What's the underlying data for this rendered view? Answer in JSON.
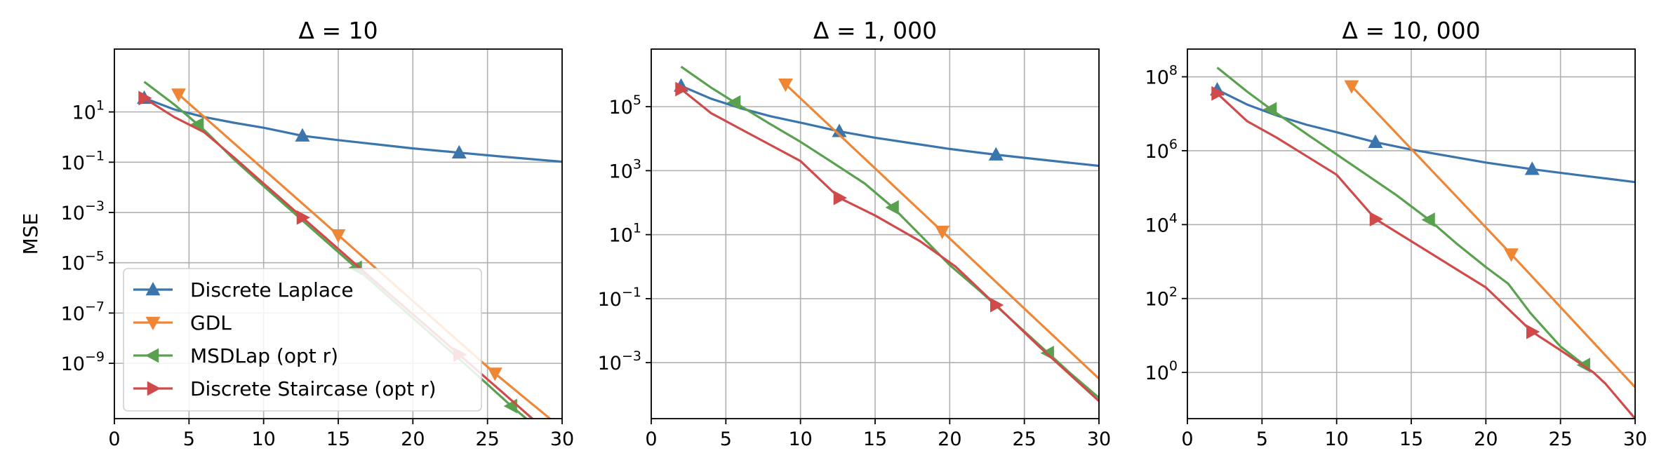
{
  "chart_data": [
    {
      "type": "line",
      "title": "Δ = 10",
      "ylabel": "MSE",
      "xlabel": "",
      "xlim": [
        0,
        30
      ],
      "ylim_log10": [
        -11.2,
        3.5
      ],
      "yscale": "log",
      "grid": true,
      "legend_placement": "lower-left",
      "xticks": [
        "0",
        "5",
        "10",
        "15",
        "20",
        "25",
        "30"
      ],
      "yticks": [
        {
          "base": "10",
          "exp": "1",
          "log10": 1
        },
        {
          "base": "10",
          "exp": "−1",
          "log10": -1
        },
        {
          "base": "10",
          "exp": "−3",
          "log10": -3
        },
        {
          "base": "10",
          "exp": "−5",
          "log10": -5
        },
        {
          "base": "10",
          "exp": "−7",
          "log10": -7
        },
        {
          "base": "10",
          "exp": "−9",
          "log10": -9
        }
      ],
      "series": [
        {
          "name": "Discrete Laplace",
          "color": "#3a75ae",
          "marker": "triangle-up",
          "x": [
            2,
            4,
            6,
            8,
            10,
            12.6,
            15,
            18,
            20,
            23.1,
            26,
            28,
            30
          ],
          "log10_y": [
            1.55,
            1.1,
            0.8,
            0.57,
            0.37,
            0.05,
            -0.12,
            -0.32,
            -0.45,
            -0.62,
            -0.78,
            -0.88,
            -0.98
          ],
          "markers_x": [
            2,
            12.6,
            23.1
          ]
        },
        {
          "name": "GDL",
          "color": "#ef8636",
          "marker": "triangle-down",
          "x": [
            4.3,
            15,
            25.5,
            30
          ],
          "log10_y": [
            1.7,
            -3.9,
            -9.4,
            -11.6
          ],
          "markers_x": [
            4.3,
            15,
            25.5
          ]
        },
        {
          "name": "MSDLap (opt r)",
          "color": "#59a14f",
          "marker": "triangle-left",
          "x": [
            2,
            4,
            5.6,
            6.3,
            8,
            10,
            12,
            14,
            16.2,
            18,
            20,
            22,
            24,
            26.6,
            28,
            30
          ],
          "log10_y": [
            2.2,
            1.3,
            0.5,
            0.12,
            -0.88,
            -1.95,
            -3.0,
            -4.05,
            -5.2,
            -6.15,
            -7.2,
            -8.25,
            -9.3,
            -10.7,
            -11.4,
            -12.4
          ],
          "markers_x": [
            5.6,
            16.2,
            26.6
          ]
        },
        {
          "name": "Discrete Staircase (opt r)",
          "color": "#d04a4a",
          "marker": "triangle-right",
          "x": [
            2,
            4,
            6,
            8,
            10,
            12.6,
            15,
            17,
            20,
            23,
            26,
            28,
            30
          ],
          "log10_y": [
            1.55,
            0.8,
            0.2,
            -0.8,
            -1.85,
            -3.2,
            -4.45,
            -5.5,
            -7.05,
            -8.6,
            -10.15,
            -11.2,
            -12.2
          ],
          "markers_x": [
            2,
            12.6,
            23.1
          ]
        }
      ]
    },
    {
      "type": "line",
      "title": "Δ = 1, 000",
      "ylabel": "",
      "xlabel": "",
      "xlim": [
        0,
        30
      ],
      "ylim_log10": [
        -4.75,
        6.8
      ],
      "yscale": "log",
      "grid": true,
      "xticks": [
        "0",
        "5",
        "10",
        "15",
        "20",
        "25",
        "30"
      ],
      "yticks": [
        {
          "base": "10",
          "exp": "5",
          "log10": 5
        },
        {
          "base": "10",
          "exp": "3",
          "log10": 3
        },
        {
          "base": "10",
          "exp": "1",
          "log10": 1
        },
        {
          "base": "10",
          "exp": "−1",
          "log10": -1
        },
        {
          "base": "10",
          "exp": "−3",
          "log10": -3
        }
      ],
      "series": [
        {
          "name": "Discrete Laplace",
          "color": "#3a75ae",
          "marker": "triangle-up",
          "x": [
            2,
            4,
            6,
            8,
            10,
            12.6,
            15,
            18,
            20,
            23.1,
            26,
            28,
            30
          ],
          "log10_y": [
            5.65,
            5.25,
            4.95,
            4.7,
            4.5,
            4.23,
            4.03,
            3.82,
            3.68,
            3.5,
            3.35,
            3.25,
            3.15
          ],
          "markers_x": [
            2,
            12.6,
            23.1
          ]
        },
        {
          "name": "GDL",
          "color": "#ef8636",
          "marker": "triangle-down",
          "x": [
            9,
            19.5,
            30
          ],
          "log10_y": [
            5.7,
            1.1,
            -3.5
          ],
          "markers_x": [
            9,
            19.5
          ]
        },
        {
          "name": "MSDLap (opt r)",
          "color": "#59a14f",
          "marker": "triangle-left",
          "x": [
            2,
            4,
            5.6,
            8,
            10,
            12,
            14.3,
            16.2,
            18,
            20,
            22,
            24,
            26.6,
            28,
            30
          ],
          "log10_y": [
            6.25,
            5.6,
            5.13,
            4.45,
            3.9,
            3.3,
            2.6,
            1.85,
            1.0,
            0.05,
            -0.75,
            -1.6,
            -2.7,
            -3.3,
            -4.1
          ],
          "markers_x": [
            5.6,
            16.2,
            26.6
          ]
        },
        {
          "name": "Discrete Staircase (opt r)",
          "color": "#d04a4a",
          "marker": "triangle-right",
          "x": [
            2,
            4,
            6,
            8,
            10,
            12.6,
            15,
            18,
            20.4,
            23.1,
            26,
            28,
            30
          ],
          "log10_y": [
            5.55,
            4.8,
            4.3,
            3.8,
            3.3,
            2.15,
            1.6,
            0.8,
            0.0,
            -1.2,
            -2.5,
            -3.35,
            -4.2
          ],
          "markers_x": [
            2,
            12.6,
            23.1
          ]
        }
      ]
    },
    {
      "type": "line",
      "title": "Δ = 10, 000",
      "ylabel": "",
      "xlabel": "",
      "xlim": [
        0,
        30
      ],
      "ylim_log10": [
        -1.25,
        8.75
      ],
      "yscale": "log",
      "grid": true,
      "xticks": [
        "0",
        "5",
        "10",
        "15",
        "20",
        "25",
        "30"
      ],
      "yticks": [
        {
          "base": "10",
          "exp": "8",
          "log10": 8
        },
        {
          "base": "10",
          "exp": "6",
          "log10": 6
        },
        {
          "base": "10",
          "exp": "4",
          "log10": 4
        },
        {
          "base": "10",
          "exp": "2",
          "log10": 2
        },
        {
          "base": "10",
          "exp": "0",
          "log10": 0
        }
      ],
      "series": [
        {
          "name": "Discrete Laplace",
          "color": "#3a75ae",
          "marker": "triangle-up",
          "x": [
            2,
            4,
            6,
            8,
            10,
            12.6,
            15,
            18,
            20,
            23.1,
            26,
            28,
            30
          ],
          "log10_y": [
            7.65,
            7.25,
            6.95,
            6.7,
            6.5,
            6.23,
            6.03,
            5.82,
            5.68,
            5.5,
            5.35,
            5.25,
            5.15
          ],
          "markers_x": [
            2,
            12.6,
            23.1
          ]
        },
        {
          "name": "GDL",
          "color": "#ef8636",
          "marker": "triangle-down",
          "x": [
            11,
            21.7,
            30
          ],
          "log10_y": [
            7.75,
            3.2,
            -0.4
          ],
          "markers_x": [
            11,
            21.7
          ]
        },
        {
          "name": "MSDLap (opt r)",
          "color": "#59a14f",
          "marker": "triangle-left",
          "x": [
            2,
            4,
            5.6,
            8,
            10,
            12,
            14,
            16.2,
            18,
            20,
            21.5,
            23,
            25,
            26.6
          ],
          "log10_y": [
            8.25,
            7.6,
            7.12,
            6.45,
            5.9,
            5.35,
            4.8,
            4.13,
            3.5,
            2.85,
            2.4,
            1.6,
            0.7,
            0.2
          ],
          "markers_x": [
            5.6,
            16.2,
            26.6
          ]
        },
        {
          "name": "Discrete Staircase (opt r)",
          "color": "#d04a4a",
          "marker": "triangle-right",
          "x": [
            2,
            4,
            6,
            8,
            10,
            12.6,
            15,
            18,
            20,
            23.1,
            25,
            27.2,
            28,
            30
          ],
          "log10_y": [
            7.55,
            6.8,
            6.35,
            5.85,
            5.35,
            4.15,
            3.55,
            2.8,
            2.3,
            1.1,
            0.6,
            0.0,
            -0.3,
            -1.25
          ],
          "markers_x": [
            2,
            12.6,
            23.1
          ]
        }
      ]
    }
  ]
}
